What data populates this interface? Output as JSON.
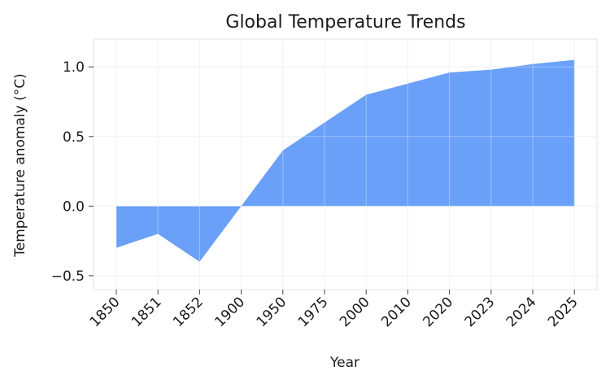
{
  "chart_data": {
    "type": "area",
    "title": "Global Temperature Trends",
    "xlabel": "Year",
    "ylabel": "Temperature anomaly (°C)",
    "categories": [
      "1850",
      "1851",
      "1852",
      "1900",
      "1950",
      "1975",
      "2000",
      "2010",
      "2020",
      "2023",
      "2024",
      "2025"
    ],
    "values": [
      -0.3,
      -0.2,
      -0.4,
      0.0,
      0.4,
      0.6,
      0.8,
      0.88,
      0.96,
      0.98,
      1.02,
      1.05
    ],
    "ylim": [
      -0.6,
      1.2
    ],
    "yticks": [
      -0.5,
      0.0,
      0.5,
      1.0
    ],
    "ytick_labels": [
      "−0.5",
      "0.0",
      "0.5",
      "1.0"
    ],
    "grid": true,
    "fill_color": "#6aa0f8",
    "baseline": 0
  }
}
